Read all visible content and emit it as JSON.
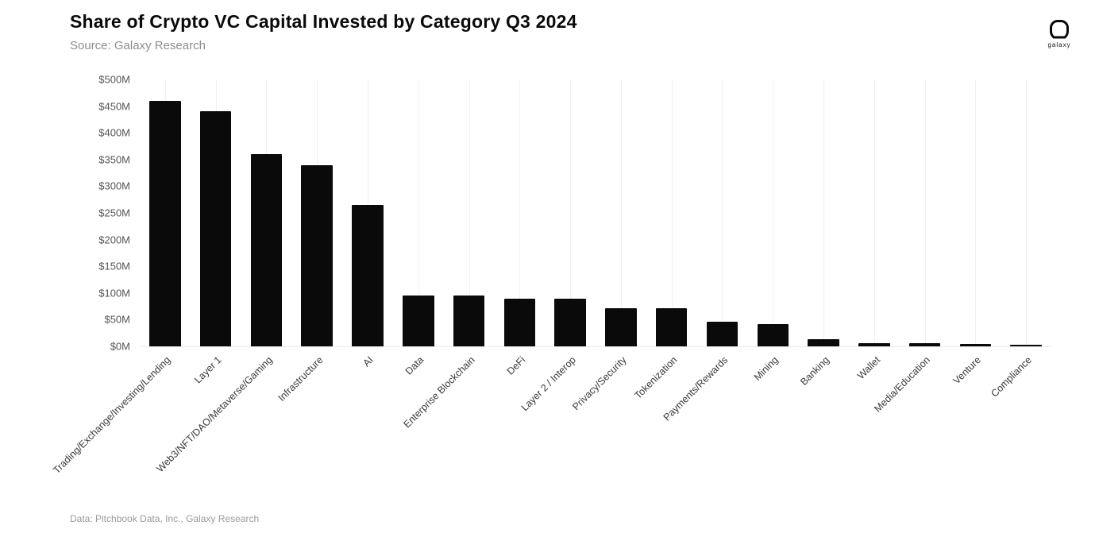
{
  "header": {
    "title": "Share of Crypto VC Capital Invested by Category Q3 2024",
    "source": "Source: Galaxy Research"
  },
  "logo": {
    "label": "galaxy",
    "icon": "galaxy-rounded-square-logo"
  },
  "footer": {
    "credit": "Data: Pitchbook Data, Inc., Galaxy Research"
  },
  "colors": {
    "bar": "#0a0a0a",
    "gridline": "#f0f0f0",
    "axis_text": "#555555",
    "subtitle_text": "#8e8e8e"
  },
  "chart_data": {
    "type": "bar",
    "title": "Share of Crypto VC Capital Invested by Category Q3 2024",
    "xlabel": "",
    "ylabel": "",
    "ylim": [
      0,
      500
    ],
    "ytick_step": 50,
    "ytick_labels": [
      "$500M",
      "$450M",
      "$400M",
      "$350M",
      "$300M",
      "$250M",
      "$200M",
      "$150M",
      "$100M",
      "$50M",
      "$0M"
    ],
    "grid": "vertical-light",
    "legend": "none",
    "categories": [
      "Trading/Exchange/Investing/Lending",
      "Layer 1",
      "Web3/NFT/DAO/Metaverse/Gaming",
      "Infrastructure",
      "AI",
      "Data",
      "Enterprise Blockchain",
      "DeFi",
      "Layer 2 / Interop",
      "Privacy/Security",
      "Tokenization",
      "Payments/Rewards",
      "Mining",
      "Banking",
      "Wallet",
      "Media/Education",
      "Venture",
      "Compliance"
    ],
    "values": [
      460,
      440,
      360,
      340,
      265,
      95,
      96,
      90,
      89,
      71,
      72,
      46,
      42,
      13,
      6,
      6,
      5,
      3
    ],
    "values_unit": "USD millions"
  }
}
